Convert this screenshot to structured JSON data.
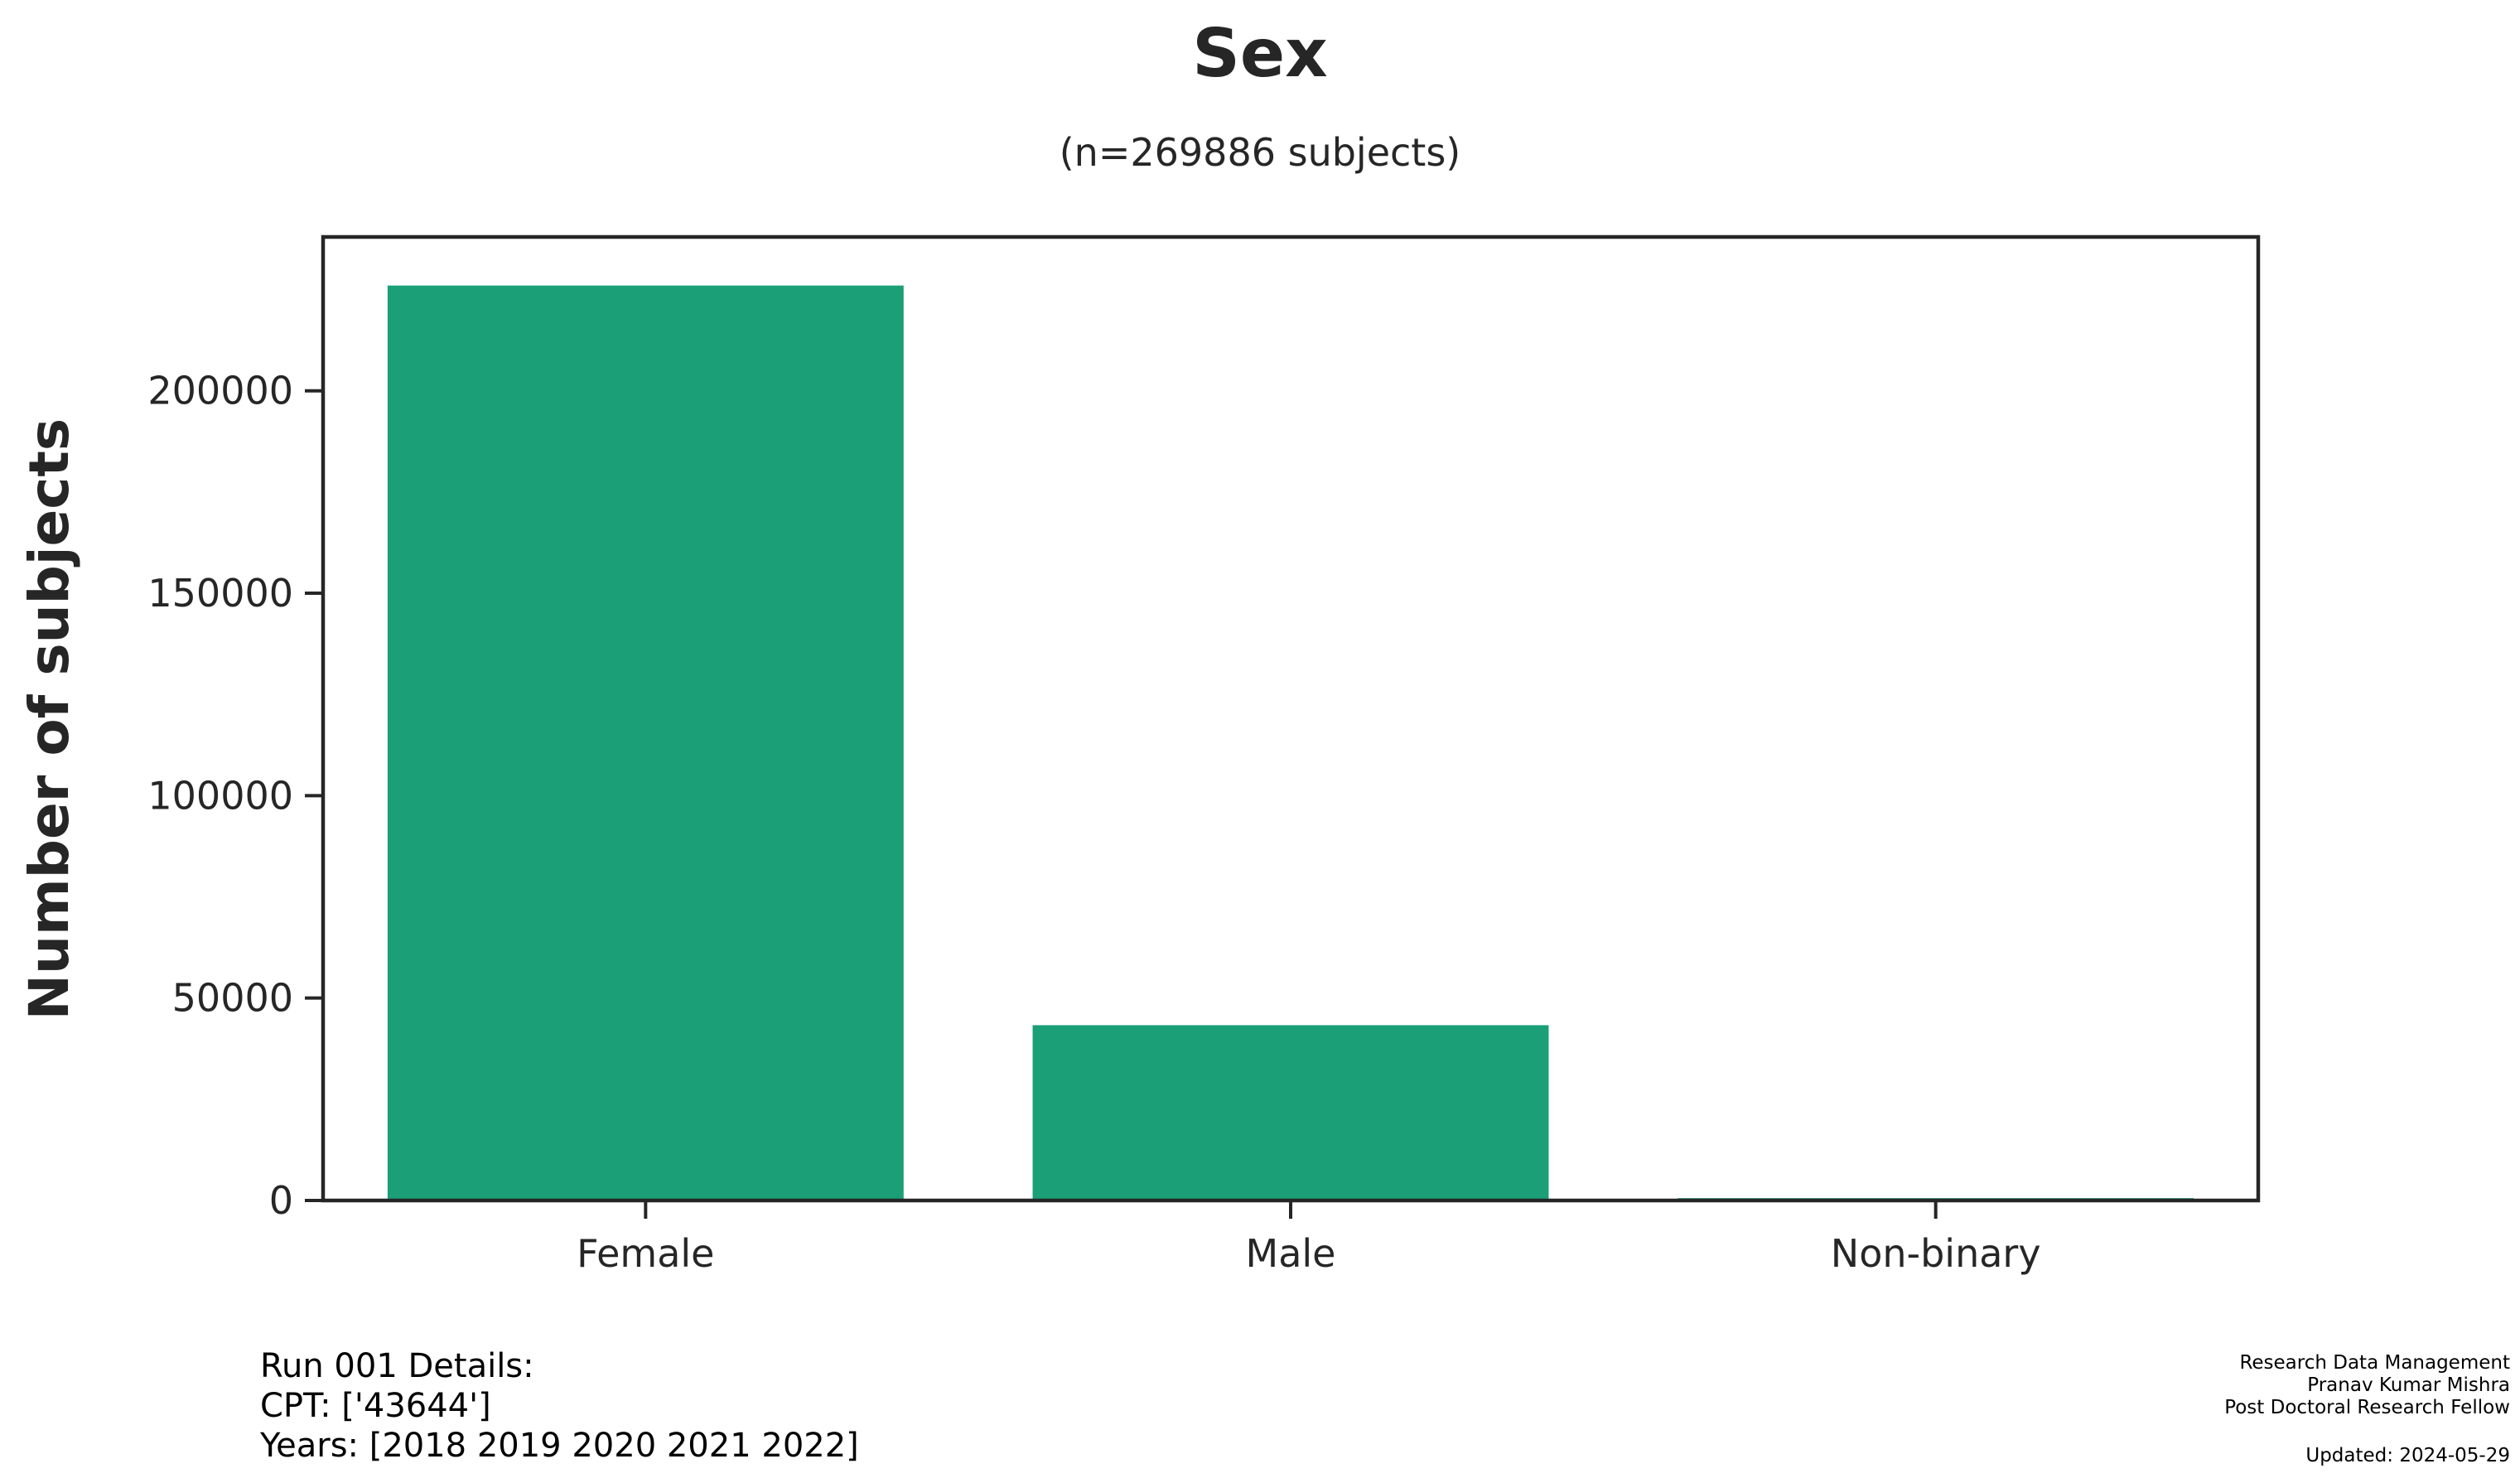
{
  "chart_data": {
    "type": "bar",
    "title": "Sex",
    "subtitle": "(n=269886 subjects)",
    "xlabel": "",
    "ylabel": "Number of subjects",
    "categories": [
      "Female",
      "Male",
      "Non-binary"
    ],
    "values": [
      226000,
      43300,
      586
    ],
    "ylim": [
      0,
      238000
    ],
    "yticks": [
      0,
      50000,
      100000,
      150000,
      200000
    ],
    "ytick_labels": [
      "0",
      "50000",
      "100000",
      "150000",
      "200000"
    ],
    "bar_color": "#1a9f76",
    "grid": false,
    "legend": "none"
  },
  "footer": {
    "run_details": [
      "Run 001 Details:",
      "CPT: ['43644']",
      "Years: [2018 2019 2020 2021 2022]"
    ],
    "credits": [
      "Research Data Management",
      "Pranav Kumar Mishra",
      "Post Doctoral Research Fellow"
    ],
    "updated": "Updated: 2024-05-29"
  }
}
